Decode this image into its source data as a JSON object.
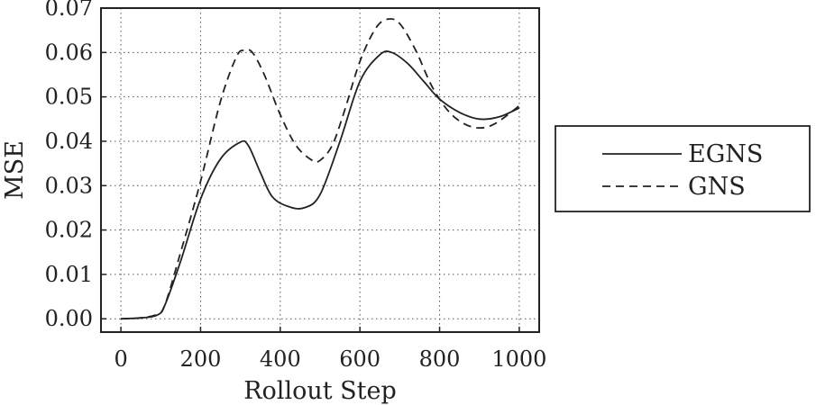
{
  "chart_data": {
    "type": "line",
    "title": "",
    "xlabel": "Rollout Step",
    "ylabel": "MSE",
    "xlim": [
      -50,
      1050
    ],
    "ylim": [
      -0.003,
      0.07
    ],
    "x_ticks": [
      0,
      200,
      400,
      600,
      800,
      1000
    ],
    "x_tick_labels": [
      "0",
      "200",
      "400",
      "600",
      "800",
      "1000"
    ],
    "y_ticks": [
      0.0,
      0.01,
      0.02,
      0.03,
      0.04,
      0.05,
      0.06,
      0.07
    ],
    "y_tick_labels": [
      "0.00",
      "0.01",
      "0.02",
      "0.03",
      "0.04",
      "0.05",
      "0.06",
      "0.07"
    ],
    "grid": true,
    "legend_position": "right",
    "series": [
      {
        "name": "EGNS",
        "style": "solid",
        "color": "#222222",
        "x": [
          0,
          50,
          90,
          110,
          150,
          200,
          250,
          300,
          320,
          350,
          380,
          420,
          460,
          500,
          550,
          600,
          650,
          680,
          720,
          760,
          800,
          850,
          900,
          950,
          1000
        ],
        "y": [
          0.0,
          0.0002,
          0.0008,
          0.003,
          0.013,
          0.027,
          0.036,
          0.0398,
          0.039,
          0.033,
          0.0275,
          0.0253,
          0.025,
          0.028,
          0.04,
          0.0535,
          0.0595,
          0.06,
          0.0575,
          0.0535,
          0.0495,
          0.0465,
          0.045,
          0.0455,
          0.0475
        ]
      },
      {
        "name": "GNS",
        "style": "dashed",
        "color": "#222222",
        "x": [
          0,
          50,
          90,
          110,
          150,
          200,
          250,
          290,
          310,
          330,
          360,
          400,
          440,
          480,
          500,
          530,
          560,
          600,
          640,
          670,
          700,
          740,
          780,
          820,
          860,
          900,
          940,
          1000
        ],
        "y": [
          0.0,
          0.0002,
          0.001,
          0.003,
          0.015,
          0.031,
          0.049,
          0.059,
          0.0605,
          0.06,
          0.055,
          0.046,
          0.039,
          0.0357,
          0.0357,
          0.039,
          0.0465,
          0.058,
          0.0655,
          0.0675,
          0.0665,
          0.0605,
          0.0525,
          0.047,
          0.044,
          0.043,
          0.044,
          0.048
        ]
      }
    ]
  }
}
